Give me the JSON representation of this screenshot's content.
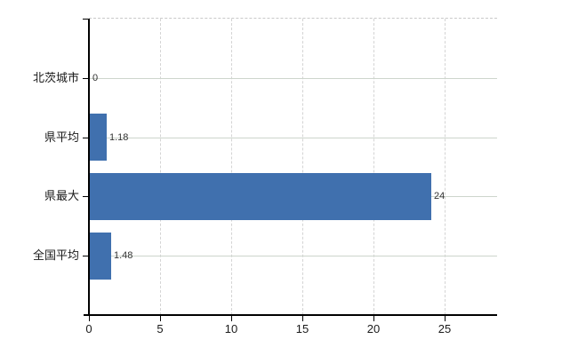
{
  "chart_data": {
    "type": "bar",
    "orientation": "horizontal",
    "title": "",
    "xlabel": "",
    "ylabel": "",
    "categories": [
      "北茨城市",
      "県平均",
      "県最大",
      "全国平均"
    ],
    "values": [
      0,
      1.18,
      24,
      1.48
    ],
    "value_labels": [
      "0",
      "1.18",
      "24",
      "1.48"
    ],
    "x_ticks": [
      0,
      5,
      10,
      15,
      20,
      25
    ],
    "x_tick_labels": [
      "0",
      "5",
      "10",
      "15",
      "20",
      "25"
    ],
    "xlim": [
      0,
      28.7
    ],
    "grid": true,
    "legend_position": "none",
    "colors": {
      "bar": "#4070ae",
      "h_gridline": "#cdd5cc",
      "v_gridline": "#d4d4d4",
      "plot_top_border": "#c9c9c9",
      "axis": "#000000",
      "text": "#1a1a1a"
    }
  }
}
